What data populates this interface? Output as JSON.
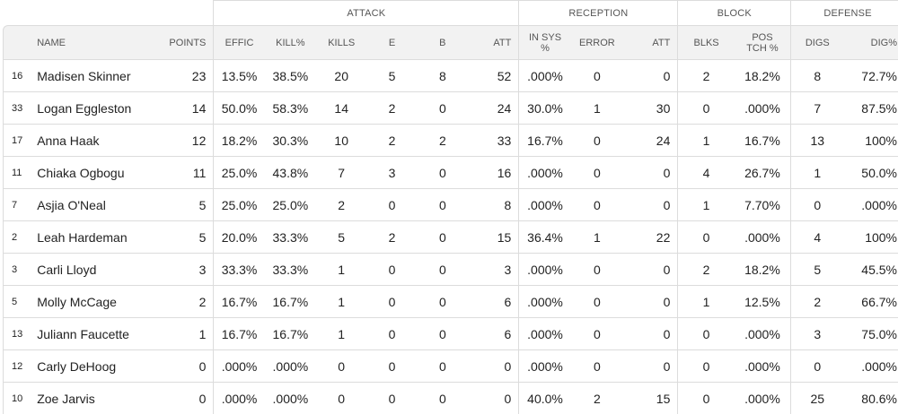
{
  "groups": {
    "attack": "ATTACK",
    "reception": "RECEPTION",
    "block": "BLOCK",
    "defense": "DEFENSE"
  },
  "columns": {
    "name": "NAME",
    "points": "POINTS",
    "effic": "EFFIC",
    "kill_pct": "KILL%",
    "kills": "KILLS",
    "e": "E",
    "b": "B",
    "att": "ATT",
    "in_sys_line1": "IN SYS",
    "in_sys_line2": "%",
    "error": "ERROR",
    "rec_att": "ATT",
    "blks": "BLKS",
    "pos_tch_line1": "POS",
    "pos_tch_line2": "TCH %",
    "digs": "DIGS",
    "dig_pct": "DIG%"
  },
  "rows": [
    {
      "num": "16",
      "name": "Madisen Skinner",
      "points": "23",
      "effic": "13.5%",
      "kill_pct": "38.5%",
      "kills": "20",
      "e": "5",
      "b": "8",
      "att": "52",
      "in_sys": ".000%",
      "error": "0",
      "rec_att": "0",
      "blks": "2",
      "pos_tch": "18.2%",
      "digs": "8",
      "dig_pct": "72.7%"
    },
    {
      "num": "33",
      "name": "Logan Eggleston",
      "points": "14",
      "effic": "50.0%",
      "kill_pct": "58.3%",
      "kills": "14",
      "e": "2",
      "b": "0",
      "att": "24",
      "in_sys": "30.0%",
      "error": "1",
      "rec_att": "30",
      "blks": "0",
      "pos_tch": ".000%",
      "digs": "7",
      "dig_pct": "87.5%"
    },
    {
      "num": "17",
      "name": "Anna Haak",
      "points": "12",
      "effic": "18.2%",
      "kill_pct": "30.3%",
      "kills": "10",
      "e": "2",
      "b": "2",
      "att": "33",
      "in_sys": "16.7%",
      "error": "0",
      "rec_att": "24",
      "blks": "1",
      "pos_tch": "16.7%",
      "digs": "13",
      "dig_pct": "100%"
    },
    {
      "num": "11",
      "name": "Chiaka Ogbogu",
      "points": "11",
      "effic": "25.0%",
      "kill_pct": "43.8%",
      "kills": "7",
      "e": "3",
      "b": "0",
      "att": "16",
      "in_sys": ".000%",
      "error": "0",
      "rec_att": "0",
      "blks": "4",
      "pos_tch": "26.7%",
      "digs": "1",
      "dig_pct": "50.0%"
    },
    {
      "num": "7",
      "name": "Asjia O'Neal",
      "points": "5",
      "effic": "25.0%",
      "kill_pct": "25.0%",
      "kills": "2",
      "e": "0",
      "b": "0",
      "att": "8",
      "in_sys": ".000%",
      "error": "0",
      "rec_att": "0",
      "blks": "1",
      "pos_tch": "7.70%",
      "digs": "0",
      "dig_pct": ".000%"
    },
    {
      "num": "2",
      "name": "Leah Hardeman",
      "points": "5",
      "effic": "20.0%",
      "kill_pct": "33.3%",
      "kills": "5",
      "e": "2",
      "b": "0",
      "att": "15",
      "in_sys": "36.4%",
      "error": "1",
      "rec_att": "22",
      "blks": "0",
      "pos_tch": ".000%",
      "digs": "4",
      "dig_pct": "100%"
    },
    {
      "num": "3",
      "name": "Carli Lloyd",
      "points": "3",
      "effic": "33.3%",
      "kill_pct": "33.3%",
      "kills": "1",
      "e": "0",
      "b": "0",
      "att": "3",
      "in_sys": ".000%",
      "error": "0",
      "rec_att": "0",
      "blks": "2",
      "pos_tch": "18.2%",
      "digs": "5",
      "dig_pct": "45.5%"
    },
    {
      "num": "5",
      "name": "Molly McCage",
      "points": "2",
      "effic": "16.7%",
      "kill_pct": "16.7%",
      "kills": "1",
      "e": "0",
      "b": "0",
      "att": "6",
      "in_sys": ".000%",
      "error": "0",
      "rec_att": "0",
      "blks": "1",
      "pos_tch": "12.5%",
      "digs": "2",
      "dig_pct": "66.7%"
    },
    {
      "num": "13",
      "name": "Juliann Faucette",
      "points": "1",
      "effic": "16.7%",
      "kill_pct": "16.7%",
      "kills": "1",
      "e": "0",
      "b": "0",
      "att": "6",
      "in_sys": ".000%",
      "error": "0",
      "rec_att": "0",
      "blks": "0",
      "pos_tch": ".000%",
      "digs": "3",
      "dig_pct": "75.0%"
    },
    {
      "num": "12",
      "name": "Carly DeHoog",
      "points": "0",
      "effic": ".000%",
      "kill_pct": ".000%",
      "kills": "0",
      "e": "0",
      "b": "0",
      "att": "0",
      "in_sys": ".000%",
      "error": "0",
      "rec_att": "0",
      "blks": "0",
      "pos_tch": ".000%",
      "digs": "0",
      "dig_pct": ".000%"
    },
    {
      "num": "10",
      "name": "Zoe Jarvis",
      "points": "0",
      "effic": ".000%",
      "kill_pct": ".000%",
      "kills": "0",
      "e": "0",
      "b": "0",
      "att": "0",
      "in_sys": "40.0%",
      "error": "2",
      "rec_att": "15",
      "blks": "0",
      "pos_tch": ".000%",
      "digs": "25",
      "dig_pct": "80.6%"
    }
  ]
}
